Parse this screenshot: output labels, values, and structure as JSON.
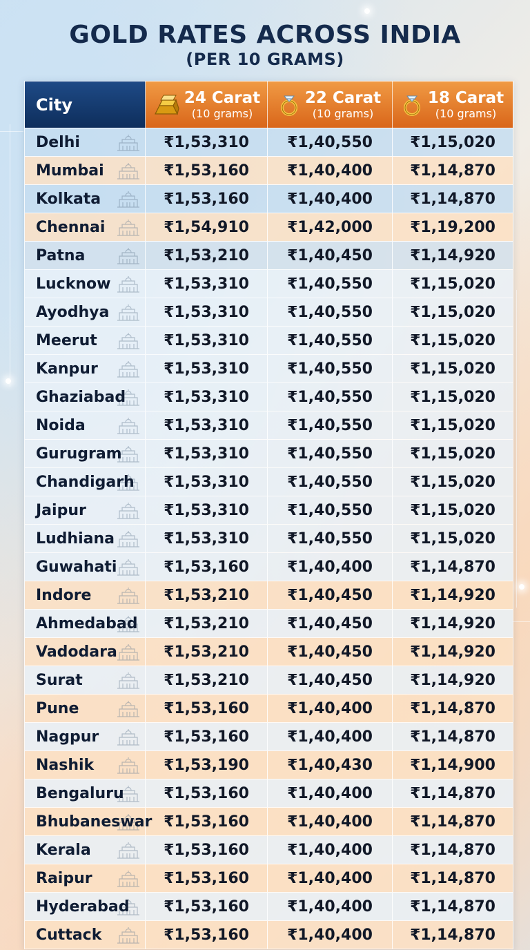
{
  "title": {
    "main": "GOLD RATES ACROSS INDIA",
    "sub": "(PER 10 GRAMS)"
  },
  "header": {
    "city": "City",
    "c24_label": "24 Carat",
    "c22_label": "22 Carat",
    "c18_label": "18 Carat",
    "unit": "(10 grams)"
  },
  "colors": {
    "header_city_bg": "#0e2e5c",
    "header_carat_bg": "#e07525",
    "title_text": "#142a4c"
  },
  "rows": [
    {
      "city": "Delhi",
      "c24": "₹1,53,310",
      "c22": "₹1,40,550",
      "c18": "₹1,15,020",
      "tint": "blue"
    },
    {
      "city": "Mumbai",
      "c24": "₹1,53,160",
      "c22": "₹1,40,400",
      "c18": "₹1,14,870",
      "tint": "orange"
    },
    {
      "city": "Kolkata",
      "c24": "₹1,53,160",
      "c22": "₹1,40,400",
      "c18": "₹1,14,870",
      "tint": "blue"
    },
    {
      "city": "Chennai",
      "c24": "₹1,54,910",
      "c22": "₹1,42,000",
      "c18": "₹1,19,200",
      "tint": "orange"
    },
    {
      "city": "Patna",
      "c24": "₹1,53,210",
      "c22": "₹1,40,450",
      "c18": "₹1,14,920",
      "tint": "gray"
    },
    {
      "city": "Lucknow",
      "c24": "₹1,53,310",
      "c22": "₹1,40,550",
      "c18": "₹1,15,020",
      "tint": "light"
    },
    {
      "city": "Ayodhya",
      "c24": "₹1,53,310",
      "c22": "₹1,40,550",
      "c18": "₹1,15,020",
      "tint": "light"
    },
    {
      "city": "Meerut",
      "c24": "₹1,53,310",
      "c22": "₹1,40,550",
      "c18": "₹1,15,020",
      "tint": "light"
    },
    {
      "city": "Kanpur",
      "c24": "₹1,53,310",
      "c22": "₹1,40,550",
      "c18": "₹1,15,020",
      "tint": "light"
    },
    {
      "city": "Ghaziabad",
      "c24": "₹1,53,310",
      "c22": "₹1,40,550",
      "c18": "₹1,15,020",
      "tint": "light"
    },
    {
      "city": "Noida",
      "c24": "₹1,53,310",
      "c22": "₹1,40,550",
      "c18": "₹1,15,020",
      "tint": "light"
    },
    {
      "city": "Gurugram",
      "c24": "₹1,53,310",
      "c22": "₹1,40,550",
      "c18": "₹1,15,020",
      "tint": "light"
    },
    {
      "city": "Chandigarh",
      "c24": "₹1,53,310",
      "c22": "₹1,40,550",
      "c18": "₹1,15,020",
      "tint": "light"
    },
    {
      "city": "Jaipur",
      "c24": "₹1,53,310",
      "c22": "₹1,40,550",
      "c18": "₹1,15,020",
      "tint": "light"
    },
    {
      "city": "Ludhiana",
      "c24": "₹1,53,310",
      "c22": "₹1,40,550",
      "c18": "₹1,15,020",
      "tint": "light"
    },
    {
      "city": "Guwahati",
      "c24": "₹1,53,160",
      "c22": "₹1,40,400",
      "c18": "₹1,14,870",
      "tint": "light"
    },
    {
      "city": "Indore",
      "c24": "₹1,53,210",
      "c22": "₹1,40,450",
      "c18": "₹1,14,920",
      "tint": "orange"
    },
    {
      "city": "Ahmedabad",
      "c24": "₹1,53,210",
      "c22": "₹1,40,450",
      "c18": "₹1,14,920",
      "tint": "light"
    },
    {
      "city": "Vadodara",
      "c24": "₹1,53,210",
      "c22": "₹1,40,450",
      "c18": "₹1,14,920",
      "tint": "orange"
    },
    {
      "city": "Surat",
      "c24": "₹1,53,210",
      "c22": "₹1,40,450",
      "c18": "₹1,14,920",
      "tint": "light"
    },
    {
      "city": "Pune",
      "c24": "₹1,53,160",
      "c22": "₹1,40,400",
      "c18": "₹1,14,870",
      "tint": "orange"
    },
    {
      "city": "Nagpur",
      "c24": "₹1,53,160",
      "c22": "₹1,40,400",
      "c18": "₹1,14,870",
      "tint": "light"
    },
    {
      "city": "Nashik",
      "c24": "₹1,53,190",
      "c22": "₹1,40,430",
      "c18": "₹1,14,900",
      "tint": "orange"
    },
    {
      "city": "Bengaluru",
      "c24": "₹1,53,160",
      "c22": "₹1,40,400",
      "c18": "₹1,14,870",
      "tint": "light"
    },
    {
      "city": "Bhubaneswar",
      "c24": "₹1,53,160",
      "c22": "₹1,40,400",
      "c18": "₹1,14,870",
      "tint": "orange"
    },
    {
      "city": "Kerala",
      "c24": "₹1,53,160",
      "c22": "₹1,40,400",
      "c18": "₹1,14,870",
      "tint": "light"
    },
    {
      "city": "Raipur",
      "c24": "₹1,53,160",
      "c22": "₹1,40,400",
      "c18": "₹1,14,870",
      "tint": "orange"
    },
    {
      "city": "Hyderabad",
      "c24": "₹1,53,160",
      "c22": "₹1,40,400",
      "c18": "₹1,14,870",
      "tint": "light"
    },
    {
      "city": "Cuttack",
      "c24": "₹1,53,160",
      "c22": "₹1,40,400",
      "c18": "₹1,14,870",
      "tint": "orange"
    }
  ]
}
